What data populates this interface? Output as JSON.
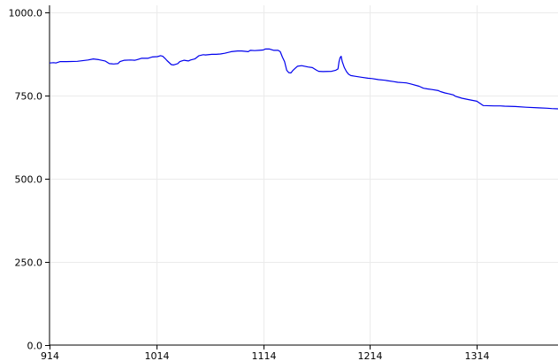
{
  "chart_data": {
    "type": "line",
    "title": "",
    "xlabel": "",
    "ylabel": "",
    "xlim": [
      914,
      1390
    ],
    "ylim": [
      0,
      1000
    ],
    "x_ticks": [
      "914",
      "1014",
      "1114",
      "1214",
      "1314"
    ],
    "x_tick_values": [
      914,
      1014,
      1114,
      1214,
      1314
    ],
    "y_ticks": [
      "0.0",
      "250.0",
      "500.0",
      "750.0",
      "1000.0"
    ],
    "y_tick_values": [
      0,
      250,
      500,
      750,
      1000
    ],
    "grid": true,
    "series": [
      {
        "color": "#0000ee",
        "x": [
          914,
          918,
          920,
          924,
          930,
          940,
          950,
          955,
          960,
          966,
          970,
          974,
          978,
          980,
          984,
          990,
          994,
          996,
          1000,
          1006,
          1010,
          1015,
          1018,
          1020,
          1022,
          1024,
          1028,
          1030,
          1034,
          1036,
          1040,
          1044,
          1046,
          1050,
          1054,
          1058,
          1060,
          1066,
          1070,
          1074,
          1078,
          1084,
          1090,
          1094,
          1100,
          1102,
          1106,
          1110,
          1114,
          1116,
          1120,
          1124,
          1128,
          1130,
          1132,
          1134,
          1136,
          1138,
          1140,
          1142,
          1144,
          1146,
          1150,
          1156,
          1160,
          1164,
          1166,
          1170,
          1178,
          1182,
          1184,
          1185,
          1186,
          1187,
          1188,
          1190,
          1192,
          1194,
          1196,
          1200,
          1206,
          1212,
          1216,
          1222,
          1228,
          1230,
          1236,
          1240,
          1244,
          1248,
          1252,
          1260,
          1264,
          1268,
          1272,
          1278,
          1280,
          1284,
          1288,
          1292,
          1294,
          1300,
          1306,
          1314,
          1320,
          1330,
          1336,
          1340,
          1350,
          1360,
          1372,
          1380,
          1384,
          1390
        ],
        "y": [
          848,
          849,
          848,
          852,
          852,
          853,
          857,
          860,
          858,
          854,
          846,
          845,
          846,
          852,
          856,
          857,
          856,
          858,
          862,
          862,
          866,
          867,
          870,
          868,
          862,
          855,
          843,
          842,
          846,
          852,
          856,
          854,
          857,
          860,
          870,
          873,
          872,
          874,
          874,
          875,
          877,
          882,
          884,
          884,
          882,
          886,
          885,
          886,
          887,
          890,
          890,
          886,
          886,
          882,
          866,
          852,
          826,
          819,
          818,
          826,
          832,
          838,
          840,
          836,
          834,
          826,
          823,
          822,
          823,
          826,
          830,
          852,
          864,
          868,
          852,
          834,
          822,
          814,
          810,
          808,
          805,
          802,
          801,
          798,
          796,
          795,
          792,
          790,
          789,
          788,
          785,
          778,
          772,
          770,
          768,
          765,
          762,
          758,
          755,
          752,
          748,
          742,
          738,
          733,
          720,
          719,
          719,
          718,
          717,
          715,
          713,
          712,
          711,
          710
        ]
      }
    ]
  }
}
